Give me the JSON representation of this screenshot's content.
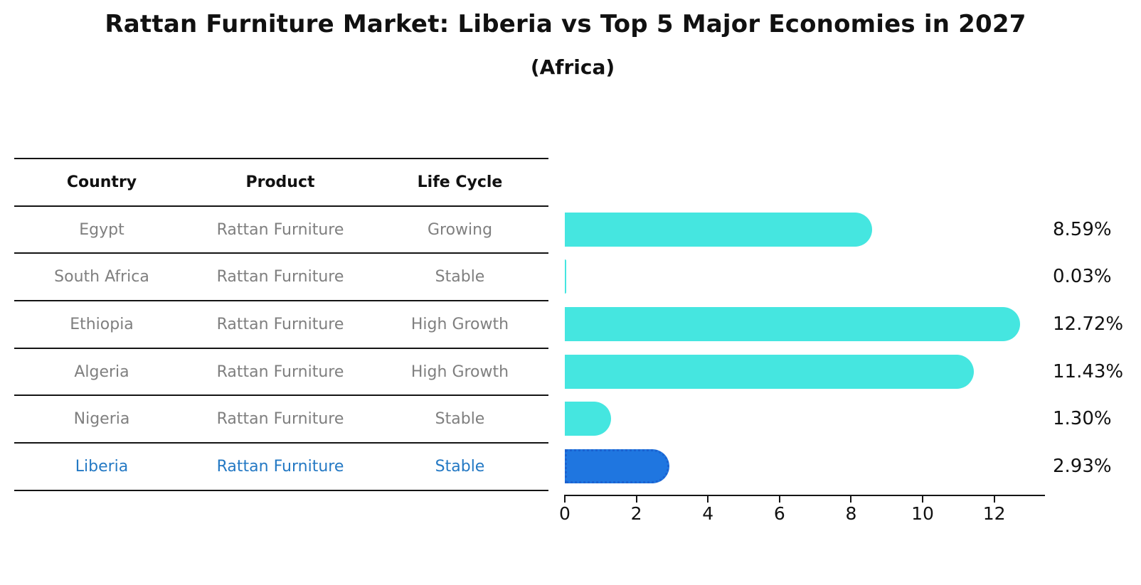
{
  "title": "Rattan Furniture Market: Liberia vs Top 5 Major Economies in 2027",
  "subtitle": "(Africa)",
  "table": {
    "headers": [
      "Country",
      "Product",
      "Life Cycle"
    ],
    "rows": [
      {
        "country": "Egypt",
        "product": "Rattan Furniture",
        "life_cycle": "Growing",
        "highlight": false
      },
      {
        "country": "South Africa",
        "product": "Rattan Furniture",
        "life_cycle": "Stable",
        "highlight": false
      },
      {
        "country": "Ethiopia",
        "product": "Rattan Furniture",
        "life_cycle": "High Growth",
        "highlight": false
      },
      {
        "country": "Algeria",
        "product": "Rattan Furniture",
        "life_cycle": "High Growth",
        "highlight": false
      },
      {
        "country": "Nigeria",
        "product": "Rattan Furniture",
        "life_cycle": "Stable",
        "highlight": false
      },
      {
        "country": "Liberia",
        "product": "Rattan Furniture",
        "life_cycle": "Stable",
        "highlight": true
      }
    ]
  },
  "chart_data": {
    "type": "bar",
    "orientation": "horizontal",
    "categories": [
      "Egypt",
      "South Africa",
      "Ethiopia",
      "Algeria",
      "Nigeria",
      "Liberia"
    ],
    "values": [
      8.59,
      0.03,
      12.72,
      11.43,
      1.3,
      2.93
    ],
    "labels": [
      "8.59%",
      "0.03%",
      "12.72%",
      "11.43%",
      "1.30%",
      "2.93%"
    ],
    "x_ticks": [
      0,
      2,
      4,
      6,
      8,
      10,
      12
    ],
    "xlim": [
      0,
      13.45
    ],
    "highlight_index": 5,
    "grid": false,
    "legend": "none"
  },
  "colors": {
    "bar": "#45E6E0",
    "highlight_bar": "#1F76E0",
    "highlight_border": "#1B62D0",
    "highlight_text": "#2479C4",
    "row_text": "#7F7F7F"
  }
}
